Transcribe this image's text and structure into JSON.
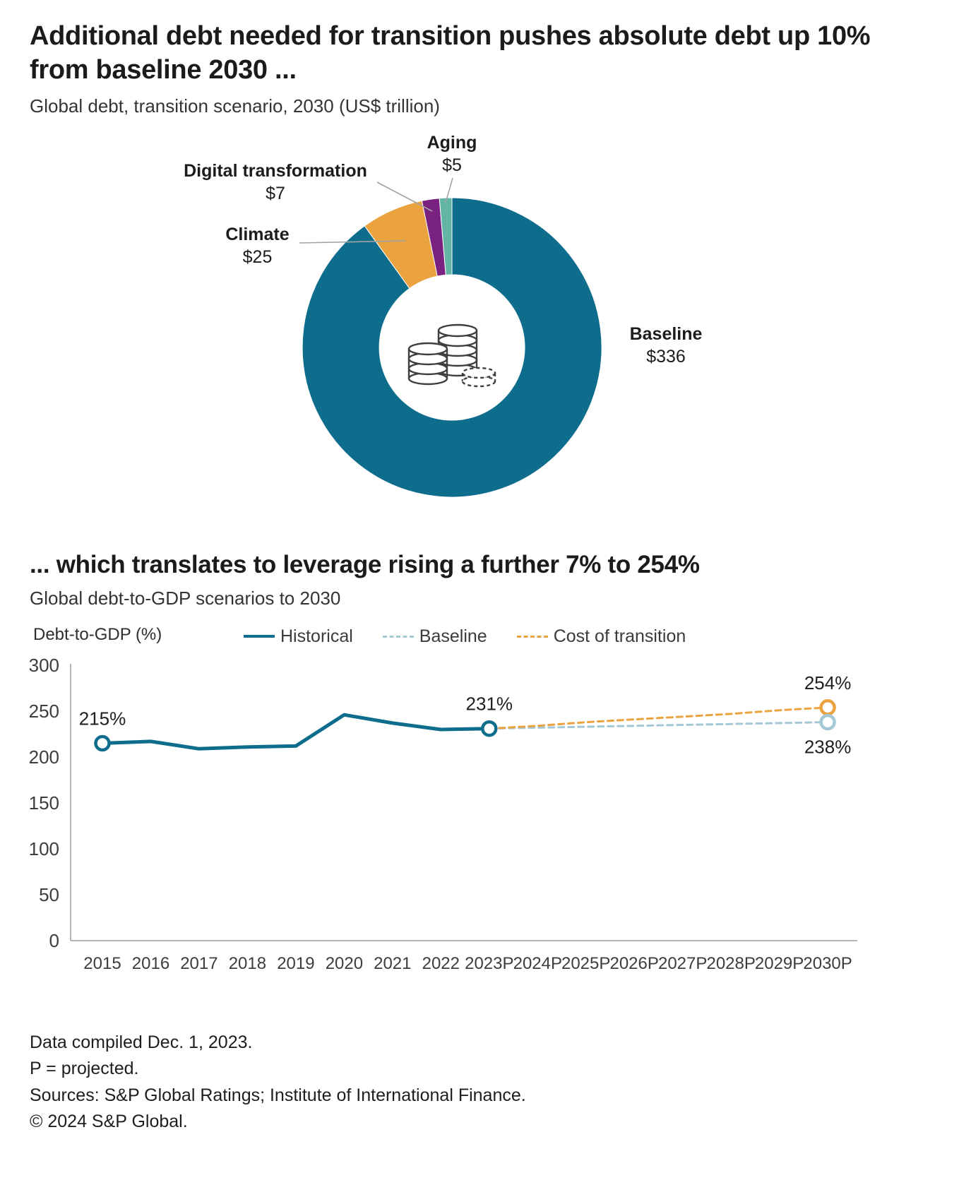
{
  "page": {
    "footer": {
      "lines": [
        "Data compiled Dec. 1, 2023.",
        "P = projected.",
        "Sources: S&P Global Ratings; Institute of International Finance.",
        "© 2024 S&P Global."
      ]
    }
  },
  "chart_data": [
    {
      "type": "pie",
      "title": "Additional debt needed for transition pushes absolute debt up 10% from baseline 2030 ...",
      "subtitle": "Global debt, transition scenario, 2030 (US$ trillion)",
      "unit": "US$ trillion",
      "center_icon": "coin-stacks-icon",
      "slices": [
        {
          "label": "Baseline",
          "value": 336,
          "display": "$336",
          "color": "#0e6c8d"
        },
        {
          "label": "Climate",
          "value": 25,
          "display": "$25",
          "color": "#eaa33e"
        },
        {
          "label": "Digital transformation",
          "value": 7,
          "display": "$7",
          "color": "#7a2280"
        },
        {
          "label": "Aging",
          "value": 5,
          "display": "$5",
          "color": "#62b5a4"
        }
      ]
    },
    {
      "type": "line",
      "title": "... which translates to leverage rising a further 7% to 254%",
      "subtitle": "Global debt-to-GDP scenarios to 2030",
      "ylabel": "Debt-to-GDP (%)",
      "ylim": [
        0,
        300
      ],
      "yticks": [
        0,
        50,
        100,
        150,
        200,
        250,
        300
      ],
      "legend_position": "top",
      "grid": false,
      "categories": [
        "2015",
        "2016",
        "2017",
        "2018",
        "2019",
        "2020",
        "2021",
        "2022",
        "2023P",
        "2024P",
        "2025P",
        "2026P",
        "2027P",
        "2028P",
        "2029P",
        "2030P"
      ],
      "series": [
        {
          "name": "Historical",
          "color": "#0e6c8d",
          "dash": false,
          "values": [
            215,
            217,
            209,
            211,
            212,
            246,
            237,
            230,
            231,
            null,
            null,
            null,
            null,
            null,
            null,
            null
          ]
        },
        {
          "name": "Baseline",
          "color": "#a5c8d6",
          "dash": true,
          "values": [
            null,
            null,
            null,
            null,
            null,
            null,
            null,
            null,
            231,
            232,
            233,
            234,
            235,
            236,
            237,
            238
          ]
        },
        {
          "name": "Cost of transition",
          "color": "#eaa33e",
          "dash": true,
          "values": [
            null,
            null,
            null,
            null,
            null,
            null,
            null,
            null,
            231,
            234,
            238,
            241,
            244,
            247,
            251,
            254
          ]
        }
      ],
      "markers": [
        {
          "category": "2015",
          "value": 215,
          "series": "Historical"
        },
        {
          "category": "2023P",
          "value": 231,
          "series": "Historical"
        },
        {
          "category": "2030P",
          "value": 254,
          "series": "Cost of transition"
        },
        {
          "category": "2030P",
          "value": 238,
          "series": "Baseline"
        }
      ],
      "annotations": [
        {
          "text": "215%",
          "category": "2015",
          "value": 215,
          "position": "above"
        },
        {
          "text": "231%",
          "category": "2023P",
          "value": 231,
          "position": "above"
        },
        {
          "text": "254%",
          "category": "2030P",
          "value": 254,
          "position": "above"
        },
        {
          "text": "238%",
          "category": "2030P",
          "value": 238,
          "position": "below"
        }
      ]
    }
  ]
}
